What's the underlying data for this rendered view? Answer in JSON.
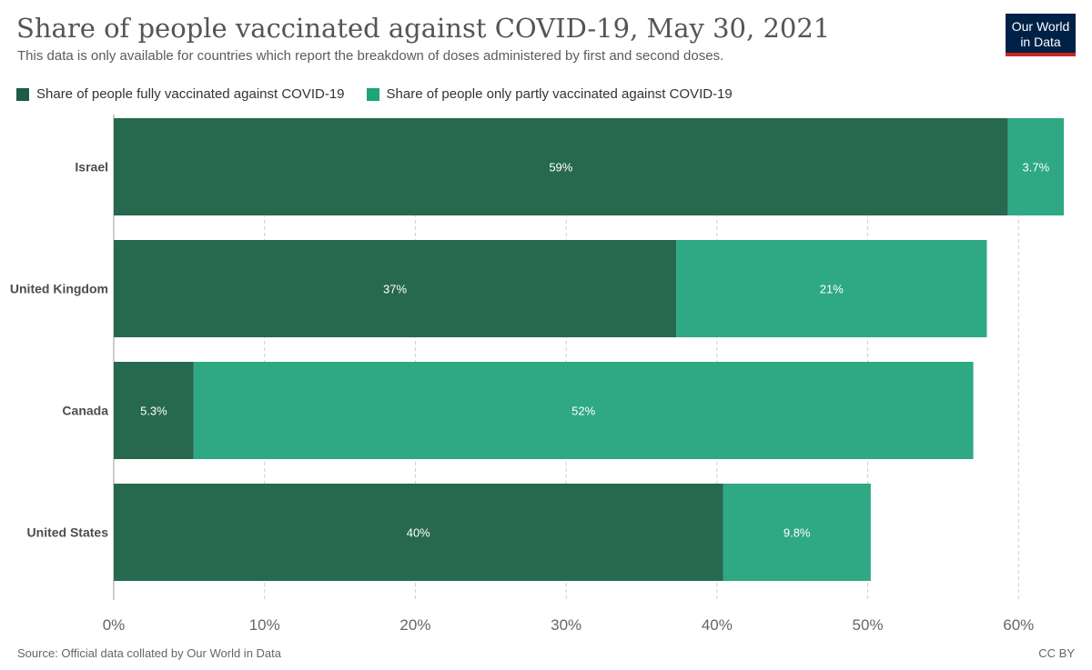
{
  "header": {
    "title": "Share of people vaccinated against COVID-19, May 30, 2021",
    "subtitle": "This data is only available for countries which report the breakdown of doses administered by first and second doses."
  },
  "logo": {
    "line1": "Our World",
    "line2": "in Data",
    "bg_color": "#002147",
    "accent_color": "#ce261e"
  },
  "chart_data": {
    "type": "bar",
    "orientation": "horizontal",
    "stacked": true,
    "categories": [
      "Israel",
      "United Kingdom",
      "Canada",
      "United States"
    ],
    "series": [
      {
        "name": "Share of people fully vaccinated against COVID-19",
        "color": "#26694f",
        "values": [
          59.3,
          37.3,
          5.3,
          40.4
        ],
        "labels": [
          "59%",
          "37%",
          "5.3%",
          "40%"
        ]
      },
      {
        "name": "Share of people only partly vaccinated against COVID-19",
        "color": "#2fa884",
        "values": [
          3.7,
          20.6,
          51.7,
          9.8
        ],
        "labels": [
          "3.7%",
          "21%",
          "52%",
          "9.8%"
        ]
      }
    ],
    "xlim": [
      0,
      63
    ],
    "xticks": [
      0,
      10,
      20,
      30,
      40,
      50,
      60
    ],
    "xtick_labels": [
      "0%",
      "10%",
      "20%",
      "30%",
      "40%",
      "50%",
      "60%"
    ],
    "grid": true,
    "legend_position": "top-left"
  },
  "footer": {
    "source": "Source: Official data collated by Our World in Data",
    "license": "CC BY"
  }
}
